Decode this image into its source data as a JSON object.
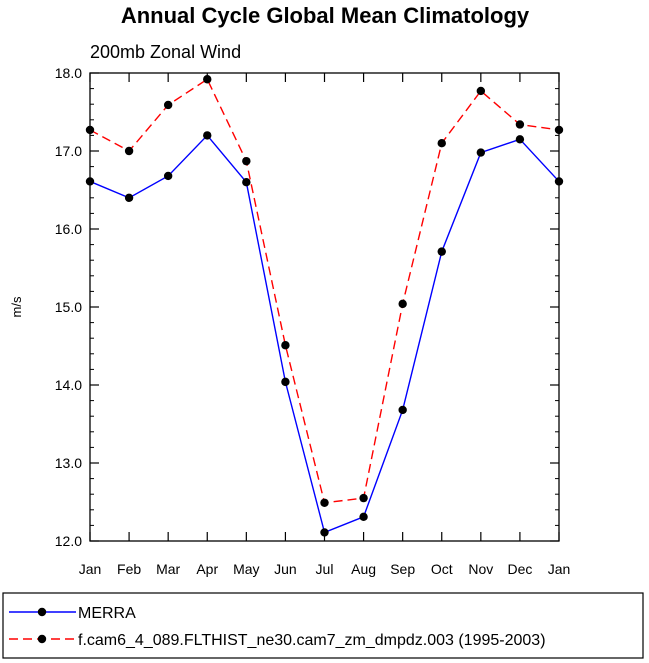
{
  "chart_data": {
    "type": "line",
    "title": "Annual Cycle Global Mean Climatology",
    "subtitle": "200mb Zonal Wind",
    "ylabel": "m/s",
    "xlabel": "",
    "categories": [
      "Jan",
      "Feb",
      "Mar",
      "Apr",
      "May",
      "Jun",
      "Jul",
      "Aug",
      "Sep",
      "Oct",
      "Nov",
      "Dec",
      "Jan"
    ],
    "ylim": [
      12.0,
      18.0
    ],
    "yticks": [
      "12.0",
      "13.0",
      "14.0",
      "15.0",
      "16.0",
      "17.0",
      "18.0"
    ],
    "grid": false,
    "legend_position": "bottom",
    "series": [
      {
        "name": "MERRA",
        "color": "#0000ff",
        "style": "solid",
        "values": [
          16.61,
          16.4,
          16.68,
          17.2,
          16.6,
          14.04,
          12.11,
          12.31,
          13.68,
          15.71,
          16.98,
          17.15,
          16.61
        ]
      },
      {
        "name": "f.cam6_4_089.FLTHIST_ne30.cam7_zm_dmpdz.003 (1995-2003)",
        "color": "#ff0000",
        "style": "dashed",
        "values": [
          17.27,
          17.0,
          17.59,
          17.92,
          16.87,
          14.51,
          12.49,
          12.55,
          15.04,
          17.1,
          17.77,
          17.34,
          17.27
        ]
      }
    ]
  }
}
